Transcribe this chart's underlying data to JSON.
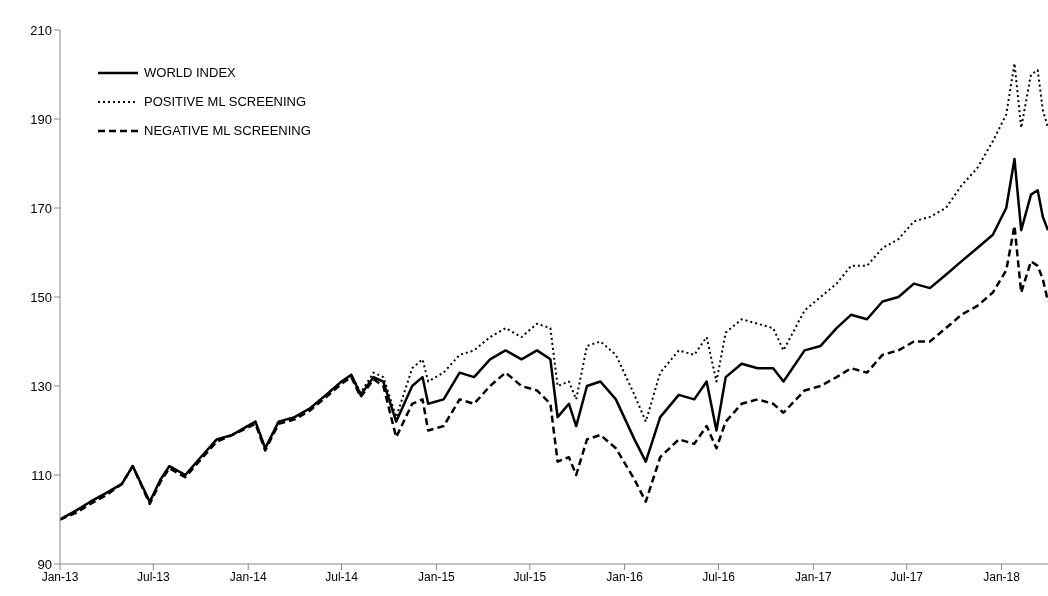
{
  "chart_data": {
    "type": "line",
    "x": [
      "2013-01-01",
      "2013-02-01",
      "2013-03-01",
      "2013-04-01",
      "2013-05-01",
      "2013-05-22",
      "2013-06-24",
      "2013-07-15",
      "2013-08-01",
      "2013-09-01",
      "2013-10-01",
      "2013-11-01",
      "2013-12-01",
      "2014-01-15",
      "2014-02-03",
      "2014-03-01",
      "2014-04-01",
      "2014-05-01",
      "2014-06-01",
      "2014-07-01",
      "2014-07-20",
      "2014-08-07",
      "2014-09-01",
      "2014-09-20",
      "2014-10-15",
      "2014-11-15",
      "2014-12-05",
      "2014-12-16",
      "2015-01-15",
      "2015-02-15",
      "2015-03-15",
      "2015-04-15",
      "2015-05-15",
      "2015-06-15",
      "2015-07-15",
      "2015-08-10",
      "2015-08-24",
      "2015-09-15",
      "2015-09-29",
      "2015-10-20",
      "2015-11-15",
      "2015-12-15",
      "2016-01-20",
      "2016-02-11",
      "2016-03-10",
      "2016-04-15",
      "2016-05-15",
      "2016-06-08",
      "2016-06-27",
      "2016-07-15",
      "2016-08-15",
      "2016-09-15",
      "2016-10-15",
      "2016-11-04",
      "2016-12-15",
      "2017-01-15",
      "2017-02-15",
      "2017-03-15",
      "2017-04-15",
      "2017-05-15",
      "2017-06-15",
      "2017-07-15",
      "2017-08-15",
      "2017-09-15",
      "2017-10-15",
      "2017-11-15",
      "2017-12-15",
      "2018-01-10",
      "2018-01-26",
      "2018-02-08",
      "2018-02-27",
      "2018-03-12",
      "2018-03-22",
      "2018-04-01"
    ],
    "series": [
      {
        "name": "WORLD INDEX",
        "color": "#000000",
        "line_style": "solid",
        "values": [
          100,
          102,
          104,
          106,
          108,
          112,
          104,
          109,
          112,
          110,
          114,
          118,
          119,
          122,
          116,
          122,
          123,
          125,
          128,
          131,
          132.5,
          128,
          132,
          131,
          122,
          130,
          132,
          126,
          127,
          133,
          132,
          136,
          138,
          136,
          138,
          136,
          123,
          126,
          121,
          130,
          131,
          127,
          118,
          113,
          123,
          128,
          127,
          131,
          120,
          132,
          135,
          134,
          134,
          131,
          138,
          139,
          143,
          146,
          145,
          149,
          150,
          153,
          152,
          155,
          158,
          161,
          164,
          170,
          181,
          165,
          173,
          174,
          168,
          165
        ]
      },
      {
        "name": "POSITIVE ML SCREENING",
        "color": "#000000",
        "line_style": "dotted",
        "values": [
          100,
          102,
          104,
          106,
          108,
          112,
          104,
          109,
          112,
          110,
          114,
          118,
          119,
          122,
          116,
          122,
          123,
          125,
          128,
          131,
          132.5,
          128.5,
          133,
          132,
          123,
          134,
          136,
          131,
          133,
          137,
          138,
          141,
          143,
          141,
          144,
          143,
          130,
          131,
          127,
          139,
          140,
          137,
          128,
          122,
          133,
          138,
          137,
          141,
          131,
          142,
          145,
          144,
          143,
          138,
          147,
          150,
          153,
          157,
          157,
          161,
          163,
          167,
          168,
          170,
          175,
          179,
          185,
          191,
          202.5,
          188,
          200,
          201,
          192,
          188
        ]
      },
      {
        "name": "NEGATIVE ML SCREENING",
        "color": "#000000",
        "line_style": "dashed",
        "values": [
          100,
          101.5,
          103.5,
          105.5,
          108,
          112,
          103.5,
          108.5,
          111.5,
          109.5,
          113.5,
          117.5,
          119,
          121.5,
          115.5,
          121.5,
          122.5,
          124.5,
          127.5,
          130.5,
          132,
          127.5,
          131.5,
          130,
          118.5,
          126,
          127,
          120,
          121,
          127,
          126,
          130,
          133,
          130,
          129,
          126,
          113,
          114,
          110,
          118,
          119,
          116,
          109,
          104,
          114,
          118,
          117,
          121,
          116,
          122,
          126,
          127,
          126,
          124,
          129,
          130,
          132,
          134,
          133,
          137,
          138,
          140,
          140,
          143,
          146,
          148,
          151,
          156,
          166,
          151,
          158,
          157,
          154,
          149
        ]
      }
    ],
    "xlim": [
      "2013-01-01",
      "2018-04-01"
    ],
    "xticks": [
      {
        "value": "2013-01-01",
        "label": "Jan-13"
      },
      {
        "value": "2013-07-01",
        "label": "Jul-13"
      },
      {
        "value": "2014-01-01",
        "label": "Jan-14"
      },
      {
        "value": "2014-07-01",
        "label": "Jul-14"
      },
      {
        "value": "2015-01-01",
        "label": "Jan-15"
      },
      {
        "value": "2015-07-01",
        "label": "Jul-15"
      },
      {
        "value": "2016-01-01",
        "label": "Jan-16"
      },
      {
        "value": "2016-07-01",
        "label": "Jul-16"
      },
      {
        "value": "2017-01-01",
        "label": "Jan-17"
      },
      {
        "value": "2017-07-01",
        "label": "Jul-17"
      },
      {
        "value": "2018-01-01",
        "label": "Jan-18"
      }
    ],
    "ylim": [
      90,
      210
    ],
    "yticks": [
      90,
      110,
      130,
      150,
      170,
      190,
      210
    ],
    "grid": false,
    "legend": "top left",
    "marker": "none"
  }
}
